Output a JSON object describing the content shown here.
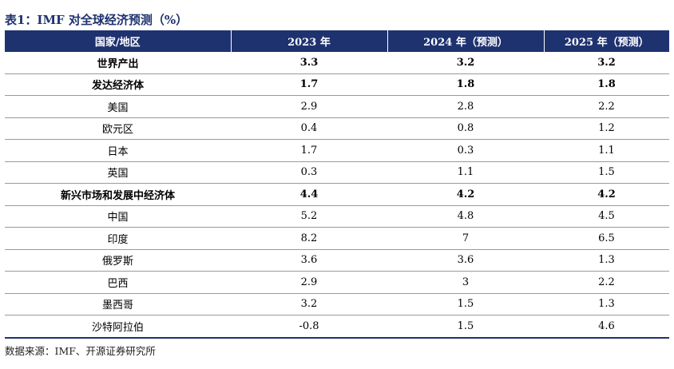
{
  "title": "表1：IMF 对全球经济预测（%）",
  "table": {
    "headers": [
      "国家/地区",
      "2023 年",
      "2024 年（预测）",
      "2025 年（预测）"
    ],
    "rows": [
      {
        "name": "世界产出",
        "bold": true,
        "y2023": "3.3",
        "y2024": "3.2",
        "y2025": "3.2"
      },
      {
        "name": "发达经济体",
        "bold": true,
        "y2023": "1.7",
        "y2024": "1.8",
        "y2025": "1.8"
      },
      {
        "name": "美国",
        "bold": false,
        "y2023": "2.9",
        "y2024": "2.8",
        "y2025": "2.2"
      },
      {
        "name": "欧元区",
        "bold": false,
        "y2023": "0.4",
        "y2024": "0.8",
        "y2025": "1.2"
      },
      {
        "name": "日本",
        "bold": false,
        "y2023": "1.7",
        "y2024": "0.3",
        "y2025": "1.1"
      },
      {
        "name": "英国",
        "bold": false,
        "y2023": "0.3",
        "y2024": "1.1",
        "y2025": "1.5"
      },
      {
        "name": "新兴市场和发展中经济体",
        "bold": true,
        "y2023": "4.4",
        "y2024": "4.2",
        "y2025": "4.2"
      },
      {
        "name": "中国",
        "bold": false,
        "y2023": "5.2",
        "y2024": "4.8",
        "y2025": "4.5"
      },
      {
        "name": "印度",
        "bold": false,
        "y2023": "8.2",
        "y2024": "7",
        "y2025": "6.5"
      },
      {
        "name": "俄罗斯",
        "bold": false,
        "y2023": "3.6",
        "y2024": "3.6",
        "y2025": "1.3"
      },
      {
        "name": "巴西",
        "bold": false,
        "y2023": "2.9",
        "y2024": "3",
        "y2025": "2.2"
      },
      {
        "name": "墨西哥",
        "bold": false,
        "y2023": "3.2",
        "y2024": "1.5",
        "y2025": "1.3"
      },
      {
        "name": "沙特阿拉伯",
        "bold": false,
        "y2023": "-0.8",
        "y2024": "1.5",
        "y2025": "4.6"
      }
    ]
  },
  "source": "数据来源：IMF、开源证券研究所",
  "colors": {
    "header_bg": "#1f3270",
    "title_color": "#1f3270"
  }
}
